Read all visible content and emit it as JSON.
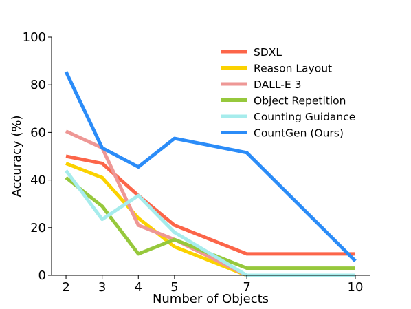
{
  "chart_data": {
    "type": "line",
    "title": "",
    "xlabel": "Number of Objects",
    "ylabel": "Accuracy (%)",
    "x": [
      2,
      3,
      4,
      5,
      7,
      10
    ],
    "xlim": [
      1.6,
      10.4
    ],
    "ylim": [
      0,
      100
    ],
    "xticks": [
      2,
      3,
      4,
      5,
      7,
      10
    ],
    "yticks": [
      0,
      20,
      40,
      60,
      80,
      100
    ],
    "grid": false,
    "legend_position": "top-right",
    "series": [
      {
        "name": "SDXL",
        "color": "#fc6549",
        "values": [
          50,
          47,
          33.5,
          21,
          9,
          9
        ]
      },
      {
        "name": "Reason Layout",
        "color": "#fbd200",
        "values": [
          47,
          41,
          24,
          12,
          0,
          0
        ]
      },
      {
        "name": "DALL-E 3",
        "color": "#ee9795",
        "values": [
          60.5,
          53.5,
          21,
          15,
          0,
          0
        ]
      },
      {
        "name": "Object Repetition",
        "color": "#96c83c",
        "values": [
          41,
          29,
          9,
          15,
          3,
          3
        ]
      },
      {
        "name": "Counting Guidance",
        "color": "#a6ecec",
        "values": [
          44,
          23.5,
          33.5,
          18,
          0,
          0
        ]
      },
      {
        "name": "CountGen (Ours)",
        "color": "#2b8cf8",
        "values": [
          85.5,
          53.5,
          45.5,
          57.5,
          51.5,
          6
        ]
      }
    ]
  }
}
